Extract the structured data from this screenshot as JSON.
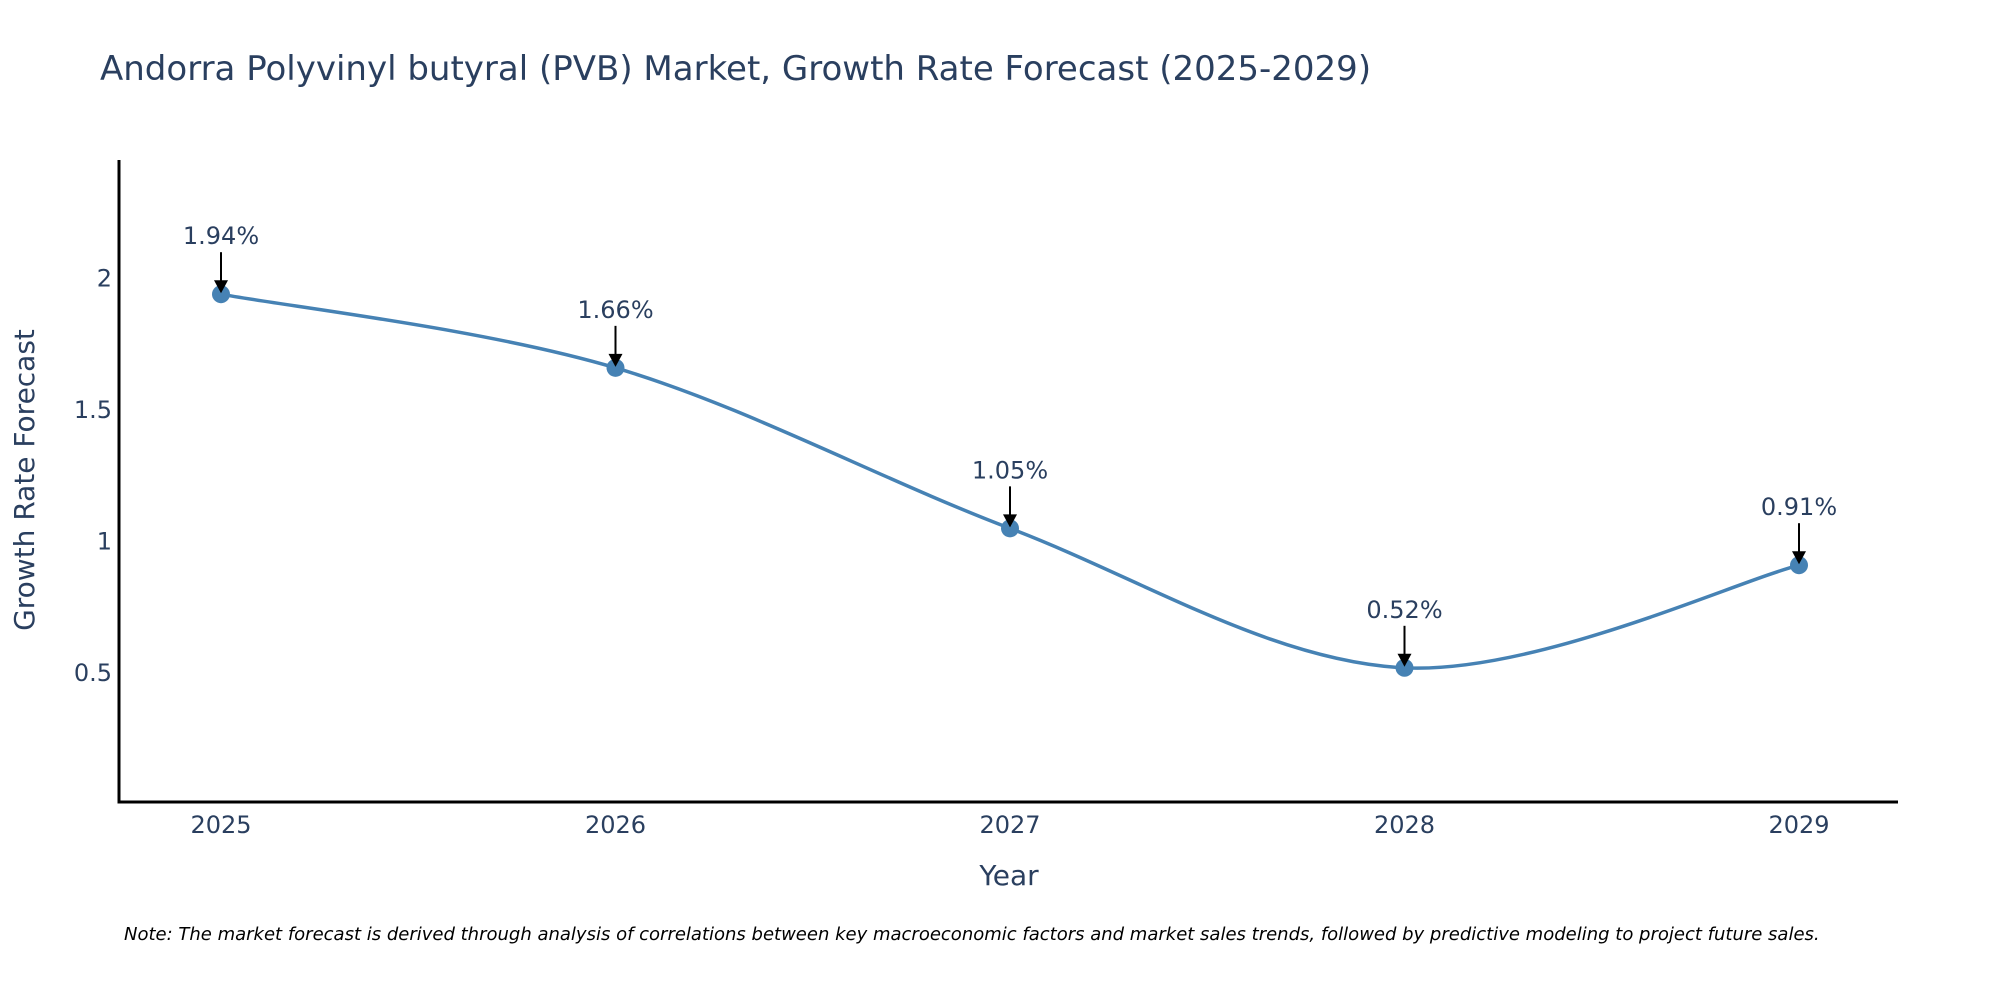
{
  "colors": {
    "series": "#4682b4",
    "text": "#2a3f5f",
    "axis": "#000000",
    "arrow": "#000000"
  },
  "chart_data": {
    "type": "line",
    "title": "Andorra Polyvinyl butyral (PVB) Market, Growth Rate Forecast (2025-2029)",
    "xlabel": "Year",
    "ylabel": "Growth Rate Forecast",
    "categories": [
      "2025",
      "2026",
      "2027",
      "2028",
      "2029"
    ],
    "series": [
      {
        "name": "Growth Rate Forecast",
        "values": [
          1.94,
          1.66,
          1.05,
          0.52,
          0.91
        ],
        "labels": [
          "1.94%",
          "1.66%",
          "1.05%",
          "0.52%",
          "0.91%"
        ]
      }
    ],
    "yticks": [
      0.5,
      1,
      1.5,
      2
    ],
    "ytick_labels": [
      "0.5",
      "1",
      "1.5",
      "2"
    ],
    "ylim": [
      0.01,
      2.45
    ],
    "grid": false,
    "line_shape": "spline",
    "markers": true
  },
  "note": "Note: The market forecast is derived through analysis of correlations between key macroeconomic factors and market sales trends, followed by predictive modeling to project future sales."
}
